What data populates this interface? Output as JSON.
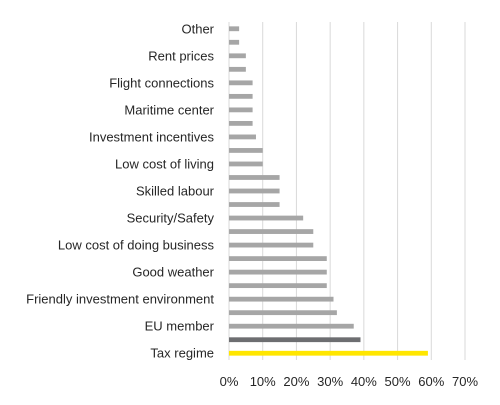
{
  "chart_data": {
    "type": "bar",
    "orientation": "horizontal",
    "title": "",
    "xlabel": "",
    "ylabel": "",
    "categories": [
      "Tax regime",
      "",
      "EU member",
      "",
      "Friendly investment environment",
      "",
      "Good weather",
      "",
      "Low cost of doing business",
      "",
      "Security/Safety",
      "",
      "Skilled labour",
      "",
      "Low cost of living",
      "",
      "Investment incentives",
      "",
      "Maritime center",
      "",
      "Flight connections",
      "",
      "Rent prices",
      "",
      "Other"
    ],
    "values": [
      59,
      39,
      37,
      32,
      31,
      29,
      29,
      29,
      25,
      25,
      22,
      15,
      15,
      15,
      10,
      10,
      8,
      7,
      7,
      7,
      7,
      5,
      5,
      3,
      3
    ],
    "bar_colors": [
      "#ffe600",
      "#6d6e71",
      "#a6a6a6",
      "#a6a6a6",
      "#a6a6a6",
      "#a6a6a6",
      "#a6a6a6",
      "#a6a6a6",
      "#a6a6a6",
      "#a6a6a6",
      "#a6a6a6",
      "#a6a6a6",
      "#a6a6a6",
      "#a6a6a6",
      "#a6a6a6",
      "#a6a6a6",
      "#a6a6a6",
      "#a6a6a6",
      "#a6a6a6",
      "#a6a6a6",
      "#a6a6a6",
      "#a6a6a6",
      "#a6a6a6",
      "#a6a6a6",
      "#a6a6a6"
    ],
    "xlim": [
      0,
      70
    ],
    "xticks": [
      0,
      10,
      20,
      30,
      40,
      50,
      60,
      70
    ],
    "xtick_labels": [
      "0%",
      "10%",
      "20%",
      "30%",
      "40%",
      "50%",
      "60%",
      "70%"
    ],
    "grid": true,
    "legend": "none"
  }
}
